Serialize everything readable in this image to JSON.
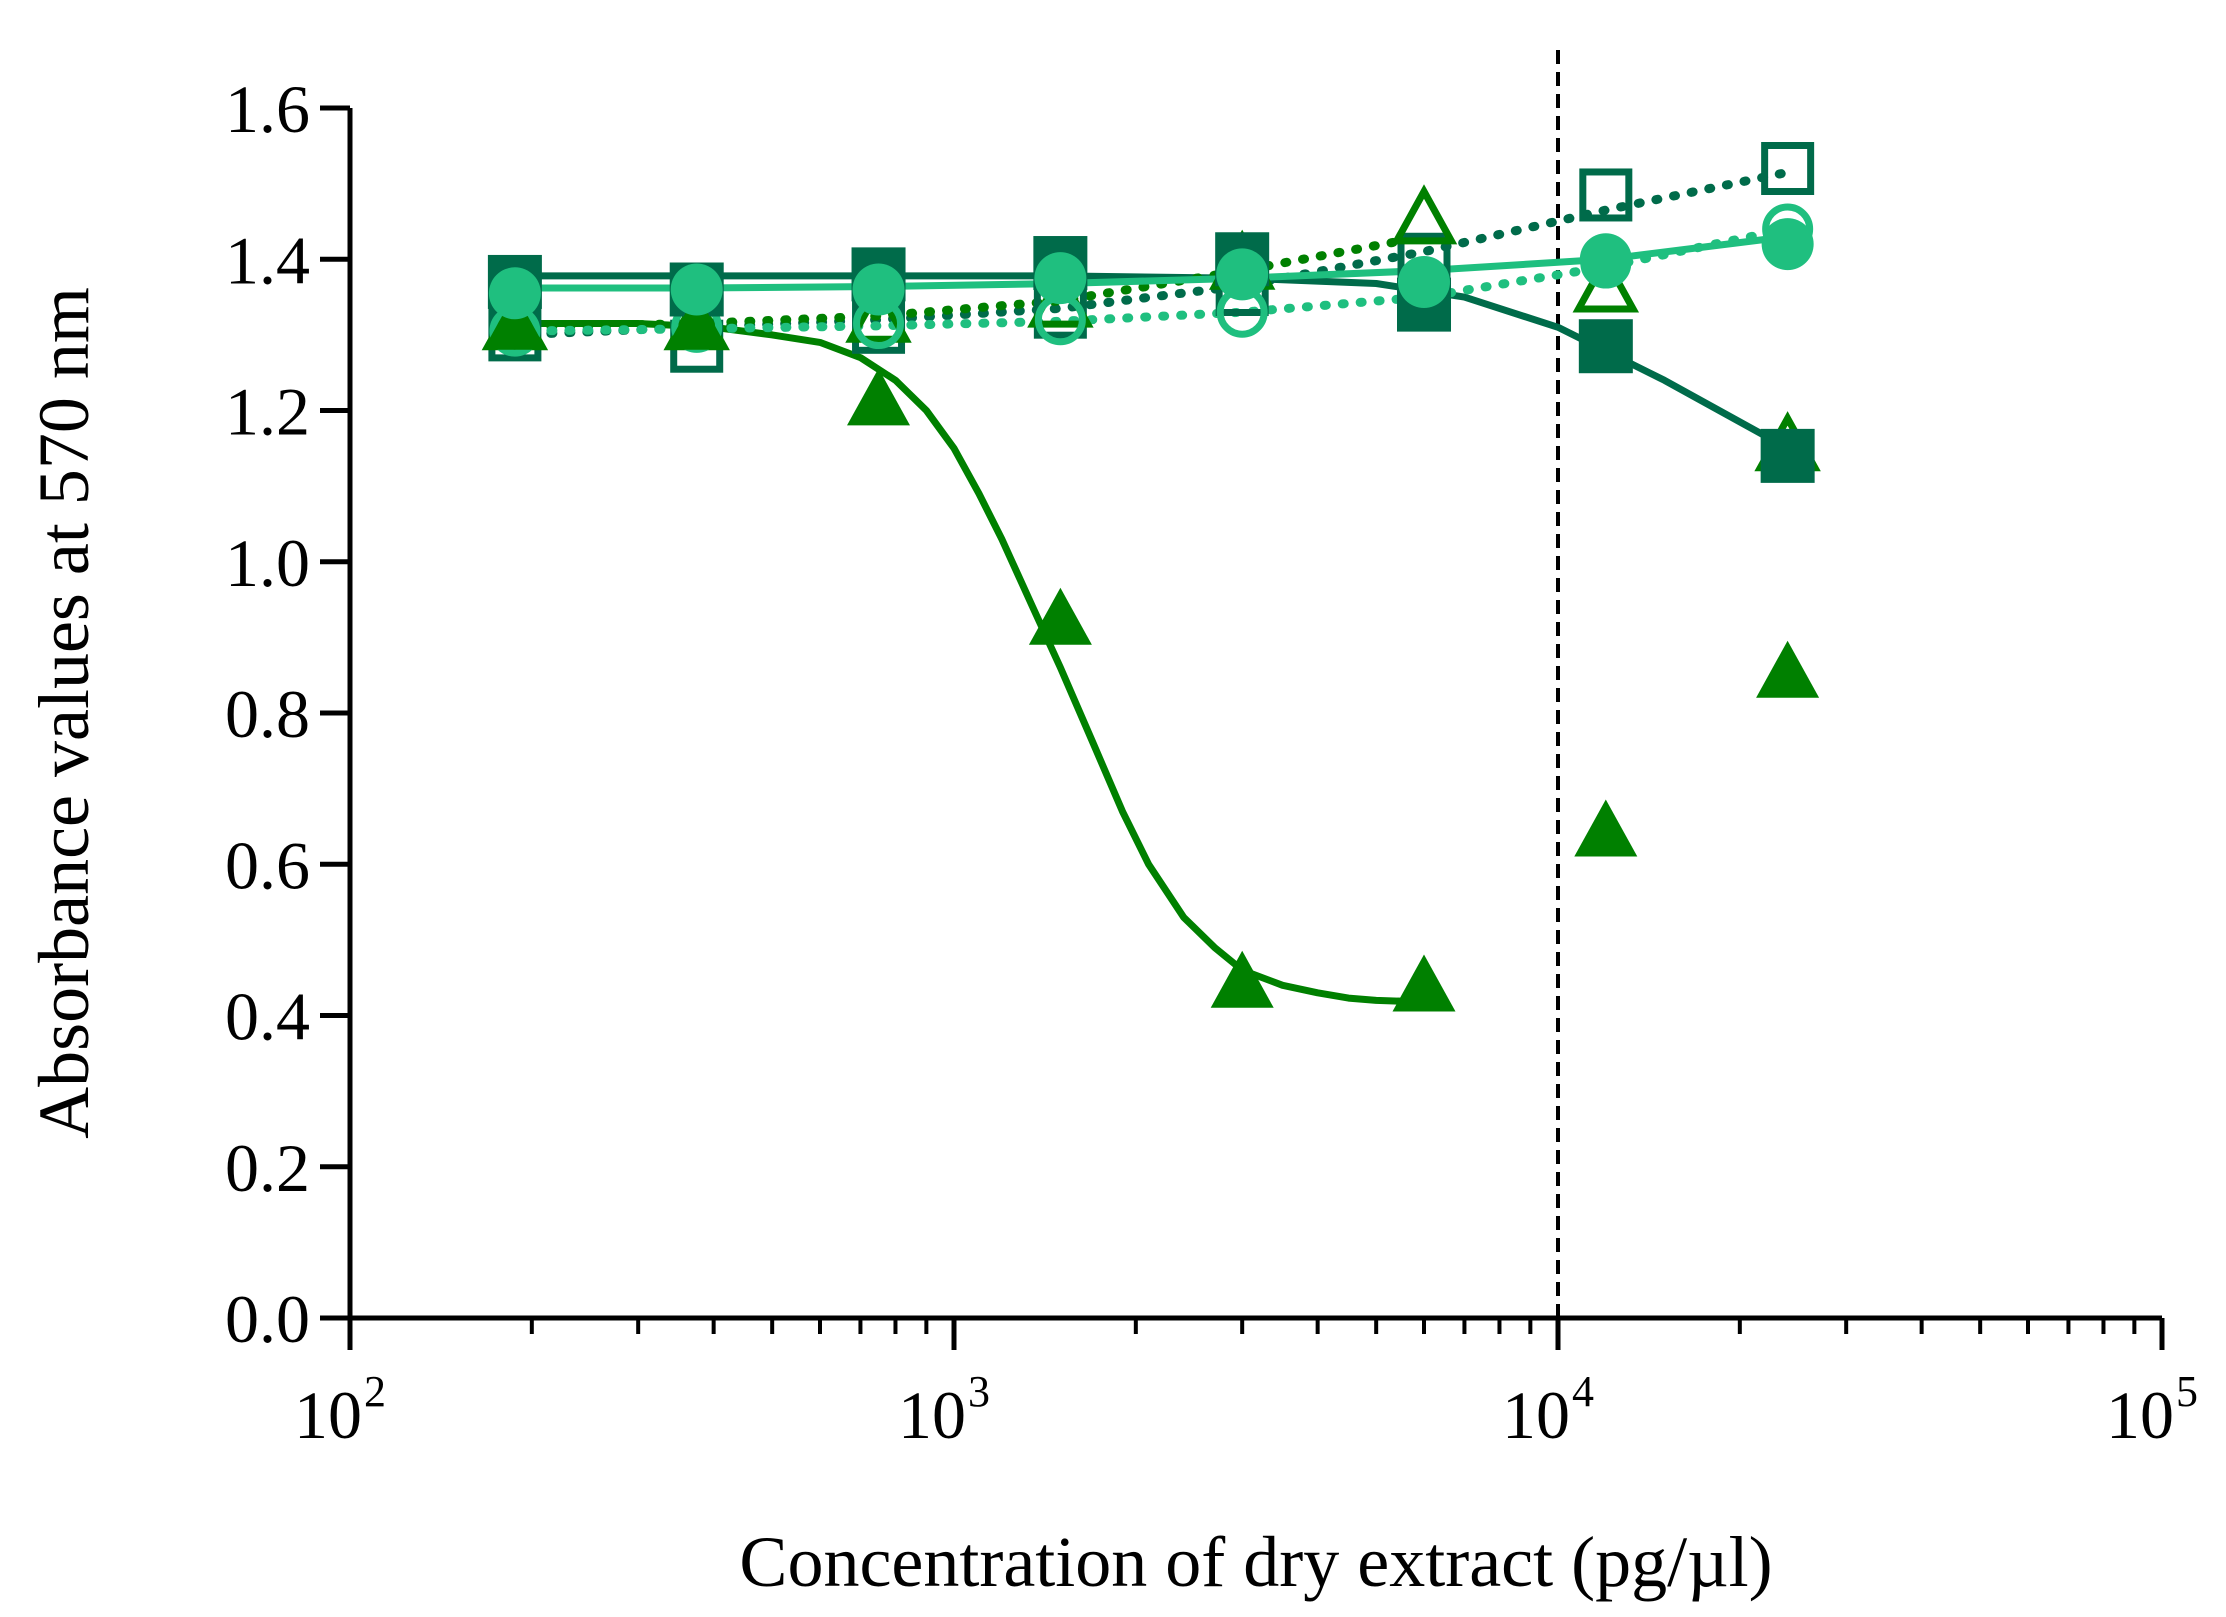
{
  "chart_data": {
    "type": "scatter",
    "title": "",
    "xlabel": "Concentration of dry extract (pg/µl)",
    "ylabel": "Absorbance values at 570 nm",
    "xscale": "log10",
    "xlim": [
      100,
      100000
    ],
    "ylim": [
      0,
      1.6
    ],
    "y_ticks": [
      0.0,
      0.2,
      0.4,
      0.6,
      0.8,
      1.0,
      1.2,
      1.4,
      1.6
    ],
    "y_tick_labels": [
      "0.0",
      "0.2",
      "0.4",
      "0.6",
      "0.8",
      "1.0",
      "1.2",
      "1.4",
      "1.6"
    ],
    "x_major_ticks": [
      100,
      1000,
      10000,
      100000
    ],
    "x_tick_labels": [
      {
        "base": "10",
        "exp": "2"
      },
      {
        "base": "10",
        "exp": "3"
      },
      {
        "base": "10",
        "exp": "4"
      },
      {
        "base": "10",
        "exp": "5"
      }
    ],
    "reference_line": {
      "x": 10000,
      "style": "dashed",
      "color": "#000000"
    },
    "grid": false,
    "series": [
      {
        "name": "filled-square",
        "marker": "square",
        "filled": true,
        "color": "#006b4a",
        "line": "solid",
        "x": [
          187.5,
          375,
          750,
          1500,
          3000,
          6000,
          12000,
          24000
        ],
        "y": [
          1.37,
          1.36,
          1.38,
          1.395,
          1.4,
          1.34,
          1.285,
          1.14
        ],
        "curve_x": [
          187.5,
          375,
          750,
          1500,
          3000,
          5000,
          7000,
          10000,
          15000,
          24000
        ],
        "curve_y": [
          1.378,
          1.378,
          1.378,
          1.378,
          1.375,
          1.368,
          1.35,
          1.31,
          1.24,
          1.15
        ]
      },
      {
        "name": "open-square",
        "marker": "square",
        "filled": false,
        "color": "#006b4a",
        "line": "dotted",
        "x": [
          187.5,
          375,
          750,
          1500,
          3000,
          6000,
          12000,
          24000
        ],
        "y": [
          1.3,
          1.285,
          1.31,
          1.33,
          1.36,
          1.4,
          1.485,
          1.52
        ],
        "curve_x": [
          187.5,
          375,
          750,
          1500,
          3000,
          6000,
          12000,
          24000
        ],
        "curve_y": [
          1.3,
          1.31,
          1.32,
          1.335,
          1.365,
          1.41,
          1.465,
          1.515
        ]
      },
      {
        "name": "filled-triangle",
        "marker": "triangle",
        "filled": true,
        "color": "#008000",
        "line": "solid",
        "x": [
          187.5,
          375,
          750,
          1500,
          3000,
          6000,
          12000,
          24000
        ],
        "y": [
          1.31,
          1.31,
          1.21,
          0.92,
          0.44,
          0.435,
          0.64,
          0.85
        ],
        "curve_x": [
          187.5,
          300,
          400,
          500,
          600,
          700,
          800,
          900,
          1000,
          1100,
          1200,
          1350,
          1500,
          1700,
          1900,
          2100,
          2400,
          2700,
          3000,
          3500,
          4000,
          4500,
          5000,
          6000
        ],
        "curve_y": [
          1.315,
          1.315,
          1.31,
          1.3,
          1.29,
          1.27,
          1.24,
          1.2,
          1.15,
          1.09,
          1.03,
          0.94,
          0.86,
          0.76,
          0.67,
          0.6,
          0.53,
          0.49,
          0.46,
          0.44,
          0.43,
          0.423,
          0.42,
          0.418
        ]
      },
      {
        "name": "open-triangle",
        "marker": "triangle",
        "filled": false,
        "color": "#008000",
        "line": "dotted",
        "x": [
          187.5,
          375,
          750,
          1500,
          3000,
          6000,
          12000,
          24000
        ],
        "y": [
          1.31,
          1.31,
          1.32,
          1.34,
          1.39,
          1.45,
          1.36,
          1.15
        ],
        "curve_x": [
          187.5,
          375,
          750,
          1500,
          3000,
          6000
        ],
        "curve_y": [
          1.31,
          1.315,
          1.325,
          1.345,
          1.385,
          1.43
        ]
      },
      {
        "name": "filled-circle",
        "marker": "circle",
        "filled": true,
        "color": "#1fbf7f",
        "line": "solid",
        "x": [
          187.5,
          375,
          750,
          1500,
          3000,
          6000,
          12000,
          24000
        ],
        "y": [
          1.355,
          1.36,
          1.36,
          1.375,
          1.38,
          1.37,
          1.4,
          1.42
        ],
        "curve_x": [
          187.5,
          375,
          750,
          1500,
          3000,
          6000,
          12000,
          24000
        ],
        "curve_y": [
          1.362,
          1.362,
          1.364,
          1.368,
          1.375,
          1.385,
          1.4,
          1.43
        ]
      },
      {
        "name": "open-circle",
        "marker": "circle",
        "filled": false,
        "color": "#1fbf7f",
        "line": "dotted",
        "x": [
          187.5,
          375,
          750,
          1500,
          3000,
          6000,
          12000,
          24000
        ],
        "y": [
          1.305,
          1.31,
          1.315,
          1.32,
          1.33,
          1.345,
          1.395,
          1.44
        ],
        "curve_x": [
          187.5,
          375,
          750,
          1500,
          3000,
          6000,
          12000,
          24000
        ],
        "curve_y": [
          1.305,
          1.308,
          1.312,
          1.318,
          1.33,
          1.35,
          1.39,
          1.44
        ]
      }
    ]
  }
}
